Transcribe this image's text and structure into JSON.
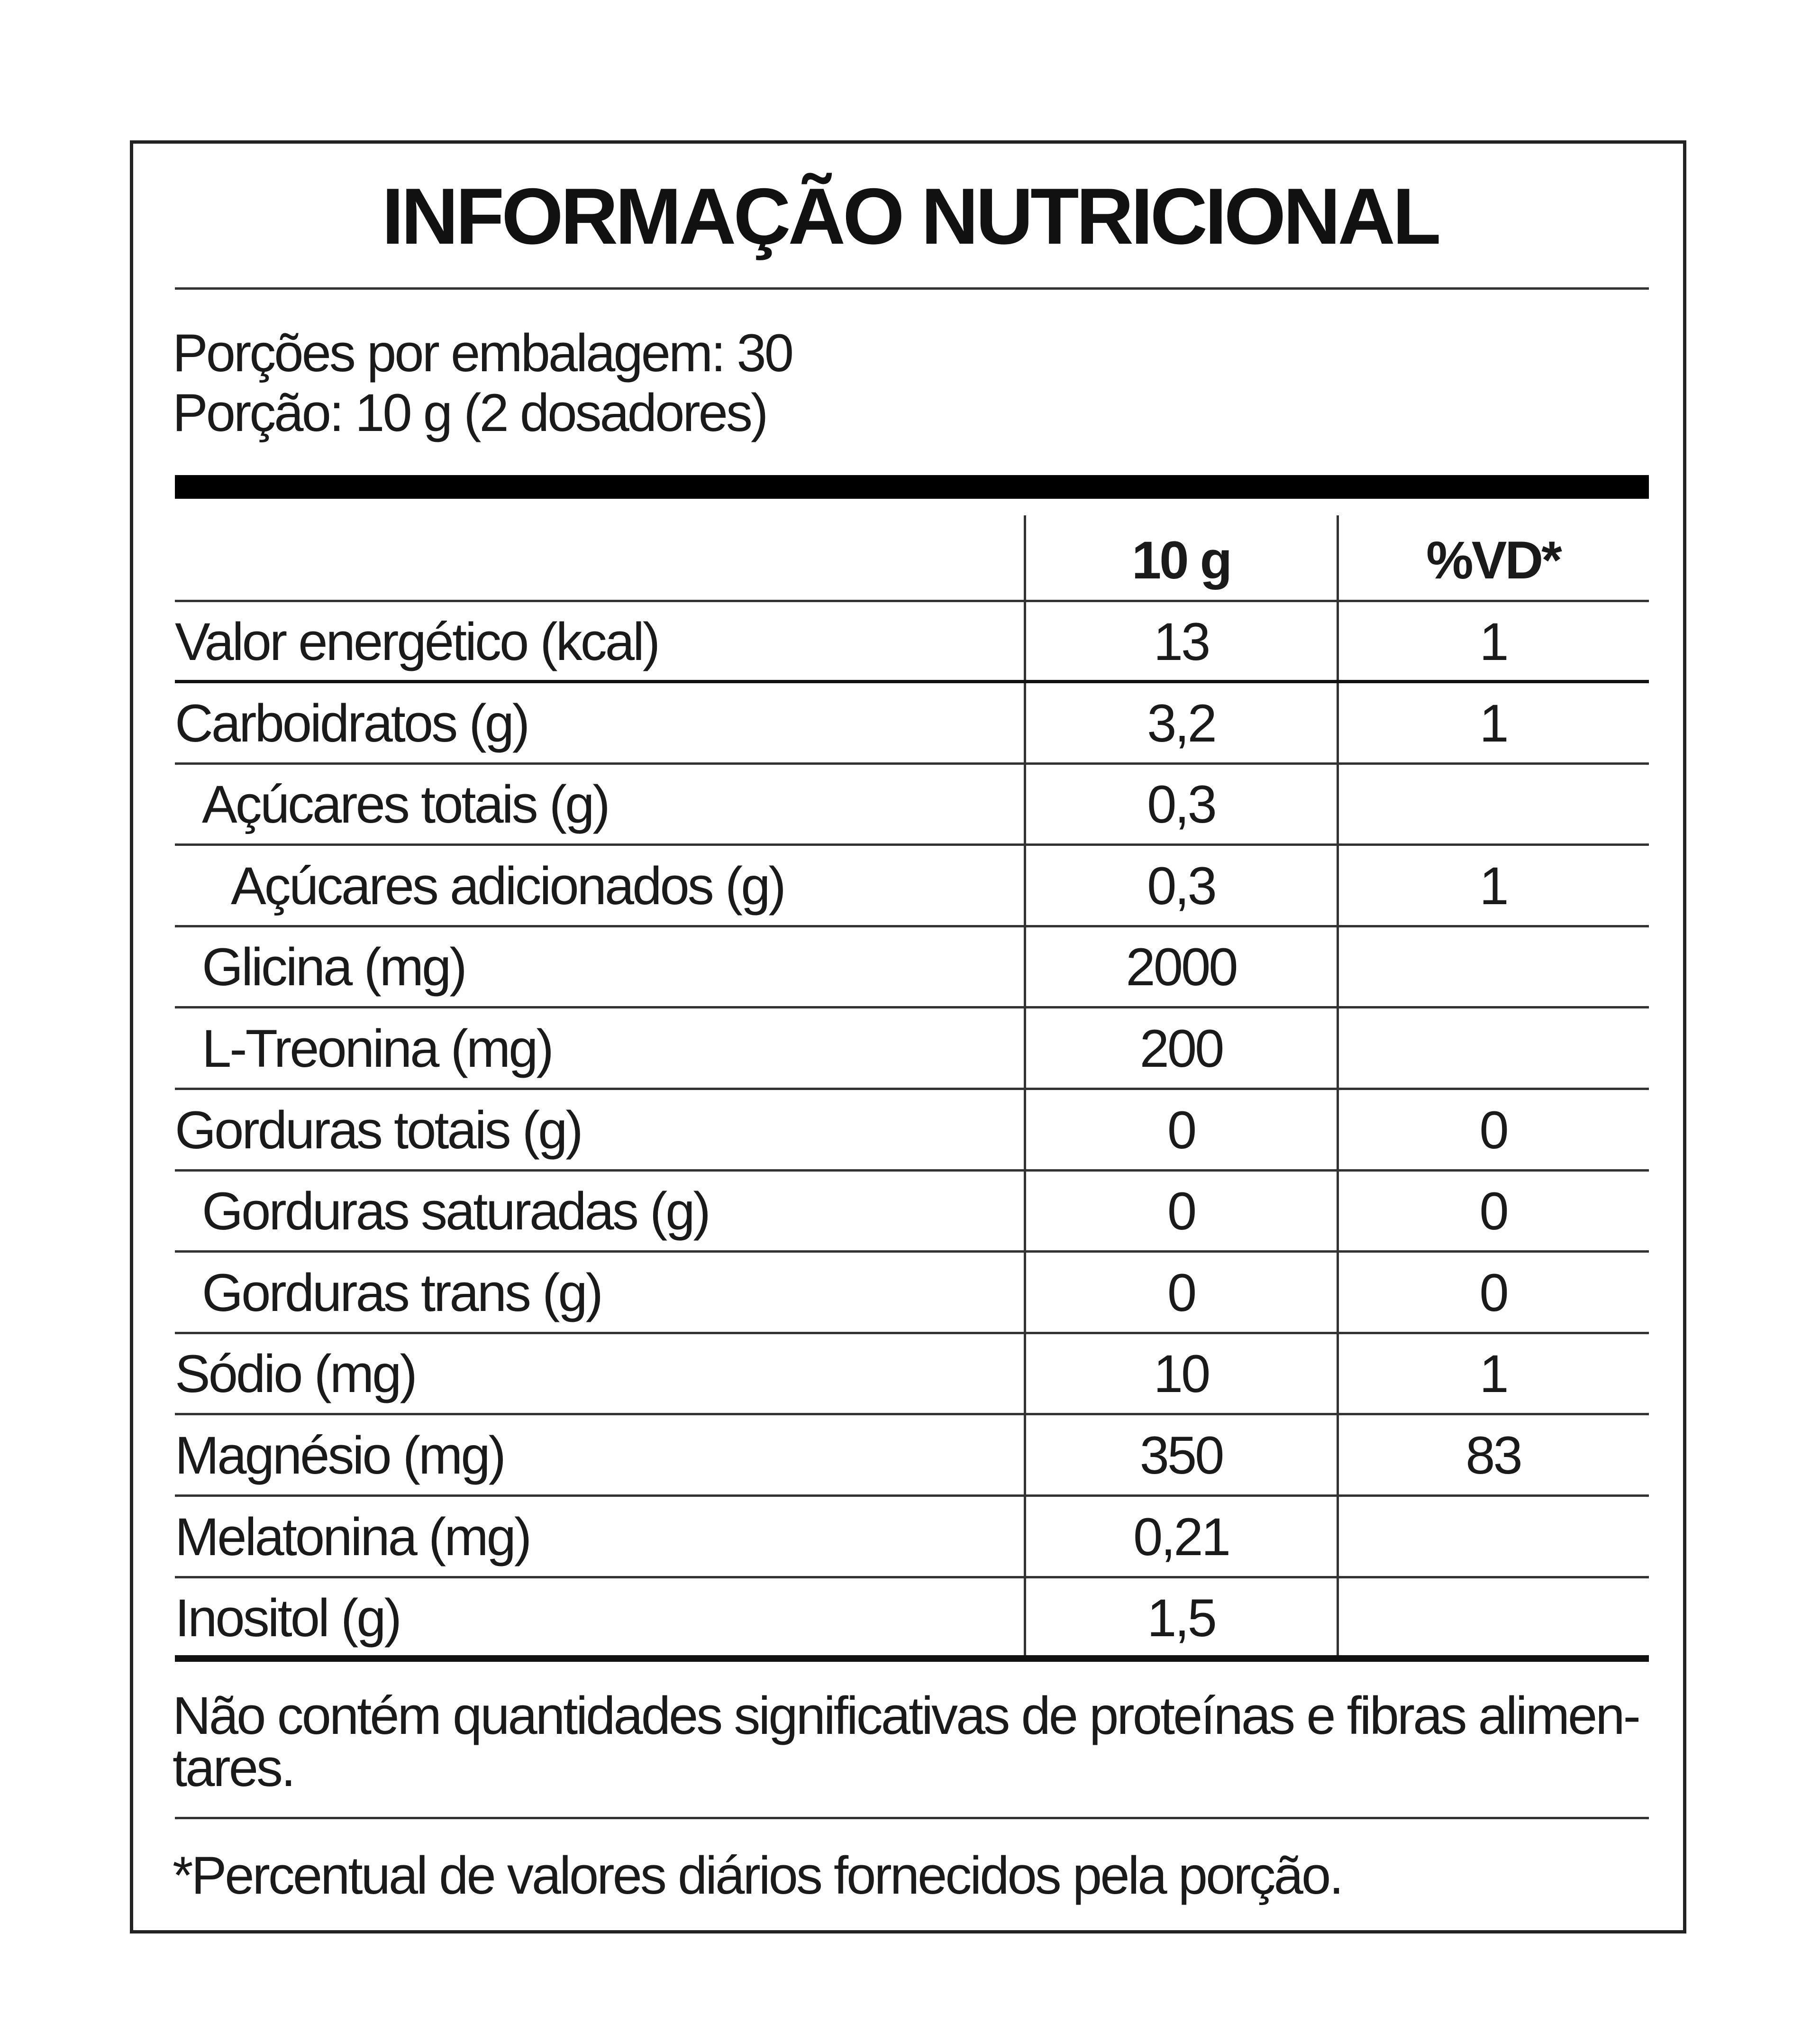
{
  "title": "INFORMAÇÃO NUTRICIONAL",
  "servings_per_package": "Porções por embalagem: 30",
  "serving_size": "Porção: 10 g (2 dosadores)",
  "table": {
    "headers": [
      "",
      "10 g",
      "%VD*"
    ],
    "rows": [
      {
        "label": "Valor energético (kcal)",
        "amount": "13",
        "dv": "1",
        "indent": 0
      },
      {
        "label": "Carboidratos (g)",
        "amount": "3,2",
        "dv": "1",
        "indent": 0
      },
      {
        "label": "Açúcares totais (g)",
        "amount": "0,3",
        "dv": "",
        "indent": 1
      },
      {
        "label": "Açúcares adicionados (g)",
        "amount": "0,3",
        "dv": "1",
        "indent": 2
      },
      {
        "label": "Glicina (mg)",
        "amount": "2000",
        "dv": "",
        "indent": 1
      },
      {
        "label": "L-Treonina (mg)",
        "amount": "200",
        "dv": "",
        "indent": 1
      },
      {
        "label": "Gorduras totais (g)",
        "amount": "0",
        "dv": "0",
        "indent": 0
      },
      {
        "label": "Gorduras saturadas (g)",
        "amount": "0",
        "dv": "0",
        "indent": 1
      },
      {
        "label": "Gorduras trans (g)",
        "amount": "0",
        "dv": "0",
        "indent": 1
      },
      {
        "label": "Sódio (mg)",
        "amount": "10",
        "dv": "1",
        "indent": 0
      },
      {
        "label": "Magnésio (mg)",
        "amount": "350",
        "dv": "83",
        "indent": 0
      },
      {
        "label": "Melatonina (mg)",
        "amount": "0,21",
        "dv": "",
        "indent": 0
      },
      {
        "label": "Inositol (g)",
        "amount": "1,5",
        "dv": "",
        "indent": 0
      }
    ]
  },
  "footnote_line1": "Não contém quantidades significativas de proteínas e fibras alimen-",
  "footnote_line2": "tares.",
  "dv_note": "*Percentual de valores diários fornecidos pela porção."
}
